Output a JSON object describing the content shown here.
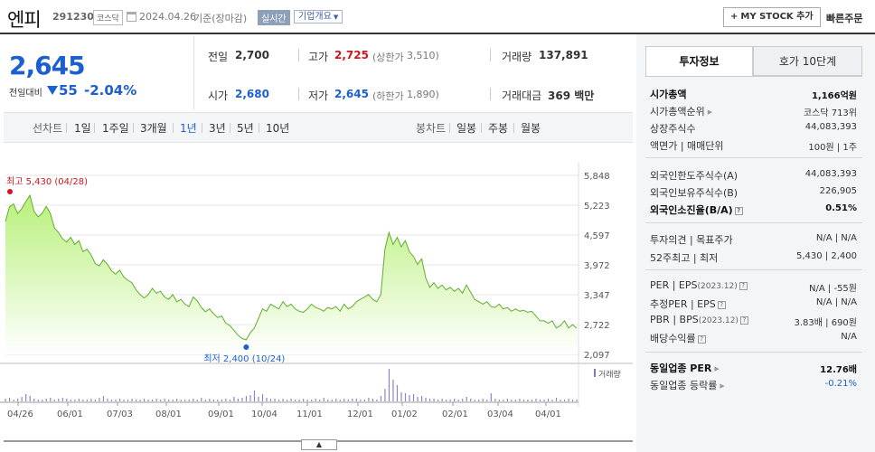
{
  "header": {
    "name": "엔피",
    "code": "291230",
    "market": "코스닥",
    "date": "2024.04.26",
    "basis": "기준(장마감)",
    "realtime": "실시간",
    "company_overview": "기업개요",
    "my_stock": "MY STOCK 추가",
    "quick_order": "빠른주문"
  },
  "quote": {
    "price": "2,645",
    "change_label": "전일대비",
    "change_amount": "55",
    "change_percent": "-2.04%",
    "prev_label": "전일",
    "prev": "2,700",
    "high_label": "고가",
    "high": "2,725",
    "upper_limit_label": "(상한가",
    "upper_limit": "3,510)",
    "volume_label": "거래량",
    "volume": "137,891",
    "open_label": "시가",
    "open": "2,680",
    "low_label": "저가",
    "low": "2,645",
    "lower_limit_label": "(하한가",
    "lower_limit": "1,890)",
    "value_label": "거래대금",
    "value": "369 백만"
  },
  "range": {
    "line_label": "선차트",
    "items": [
      "1일",
      "1주일",
      "3개월",
      "1년",
      "3년",
      "5년",
      "10년"
    ],
    "selected": "1년",
    "candle_label": "봉차트",
    "candle_items": [
      "일봉",
      "주봉",
      "월봉"
    ]
  },
  "chart_data": {
    "type": "area",
    "y_ticks": [
      "5,848",
      "5,223",
      "4,597",
      "3,972",
      "3,347",
      "2,722",
      "2,097"
    ],
    "ylim": [
      2097,
      5848
    ],
    "x_ticks": [
      "04/26",
      "06/01",
      "07/03",
      "08/01",
      "09/01",
      "10/04",
      "11/01",
      "12/01",
      "01/02",
      "02/01",
      "03/04",
      "04/01"
    ],
    "high_annotation": "최고 5,430 (04/28)",
    "low_annotation": "최저 2,400 (10/24)",
    "volume_label": "거래량",
    "prices": [
      4880,
      5190,
      5250,
      5050,
      5150,
      5300,
      5430,
      5100,
      4980,
      5050,
      5200,
      5050,
      4750,
      4650,
      4520,
      4450,
      4550,
      4400,
      4480,
      4250,
      4300,
      4180,
      4000,
      3950,
      4080,
      3980,
      3850,
      3780,
      3860,
      3720,
      3650,
      3600,
      3450,
      3350,
      3280,
      3350,
      3480,
      3380,
      3420,
      3300,
      3250,
      3350,
      3200,
      3250,
      3150,
      3100,
      3300,
      3220,
      3080,
      2990,
      3050,
      2950,
      2870,
      2900,
      2750,
      2700,
      2600,
      2500,
      2430,
      2400,
      2550,
      2650,
      2850,
      3050,
      3000,
      3150,
      3100,
      3050,
      3200,
      3100,
      3150,
      3050,
      3000,
      2980,
      3050,
      3150,
      3080,
      3050,
      3000,
      3080,
      3050,
      3100,
      3000,
      3150,
      3050,
      3100,
      3200,
      3250,
      3300,
      3350,
      3250,
      3200,
      3350,
      4300,
      4650,
      4400,
      4550,
      4350,
      4480,
      4250,
      4150,
      3980,
      4100,
      3700,
      3500,
      3600,
      3480,
      3550,
      3450,
      3500,
      3420,
      3480,
      3380,
      3550,
      3400,
      3250,
      3200,
      3150,
      3200,
      3100,
      3080,
      3150,
      3050,
      3080,
      3000,
      3050,
      3000,
      3020,
      2980,
      3000,
      2900,
      2800,
      2800,
      2750,
      2800,
      2650,
      2700,
      2800,
      2650,
      2720,
      2645
    ],
    "volumes": [
      3,
      4,
      2,
      3,
      5,
      8,
      6,
      3,
      2,
      2,
      3,
      4,
      2,
      3,
      4,
      3,
      2,
      2,
      3,
      2,
      2,
      3,
      2,
      4,
      6,
      3,
      2,
      2,
      3,
      2,
      2,
      3,
      2,
      2,
      3,
      2,
      2,
      3,
      2,
      3,
      2,
      2,
      3,
      2,
      2,
      2,
      3,
      2,
      4,
      2,
      3,
      2,
      2,
      2,
      3,
      2,
      5,
      3,
      4,
      6,
      7,
      12,
      5,
      8,
      4,
      3,
      3,
      2,
      3,
      2,
      3,
      2,
      2,
      3,
      2,
      2,
      3,
      2,
      4,
      2,
      2,
      3,
      2,
      3,
      2,
      3,
      3,
      2,
      2,
      4,
      3,
      2,
      6,
      14,
      36,
      24,
      18,
      10,
      9,
      7,
      8,
      5,
      6,
      4,
      3,
      3,
      2,
      3,
      2,
      2,
      3,
      2,
      3,
      5,
      3,
      2,
      2,
      3,
      2,
      9,
      3,
      2,
      2,
      3,
      2,
      2,
      3,
      2,
      2,
      2,
      3,
      2,
      2,
      3,
      2,
      4,
      2,
      2,
      3,
      2,
      2
    ]
  },
  "panel": {
    "tab_info": "투자정보",
    "tab_orderbook": "호가 10단계",
    "rows": {
      "mcap_label": "시가총액",
      "mcap": "1,166억원",
      "mcap_rank_label": "시가총액순위",
      "mcap_rank": "코스닥 713위",
      "shares_label": "상장주식수",
      "shares": "44,083,393",
      "par_label": "액면가 | 매매단위",
      "par": "100원 | 1주",
      "foreign_limit_label": "외국인한도주식수(A)",
      "foreign_limit": "44,083,393",
      "foreign_hold_label": "외국인보유주식수(B)",
      "foreign_hold": "226,905",
      "foreign_ratio_label": "외국인소진율(B/A)",
      "foreign_ratio": "0.51%",
      "opinion_label": "투자의견 | 목표주가",
      "opinion": "N/A | N/A",
      "w52_label": "52주최고 | 최저",
      "w52": "5,430 | 2,400",
      "per_label": "PER | EPS",
      "per_year": "(2023.12)",
      "per": "N/A | -55원",
      "est_per_label": "추정PER | EPS",
      "est_per": "N/A | N/A",
      "pbr_label": "PBR | BPS",
      "pbr_year": "(2023.12)",
      "pbr": "3.83배 | 690원",
      "dividend_label": "배당수익률",
      "dividend": "N/A",
      "industry_per_label": "동일업종 PER",
      "industry_per": "12.76배",
      "industry_chg_label": "동일업종 등락률",
      "industry_chg": "-0.21%"
    }
  },
  "colors": {
    "up": "#d2141c",
    "down": "#1b5fd1",
    "area_top": "#b8f07a",
    "line": "#5fae2c"
  }
}
